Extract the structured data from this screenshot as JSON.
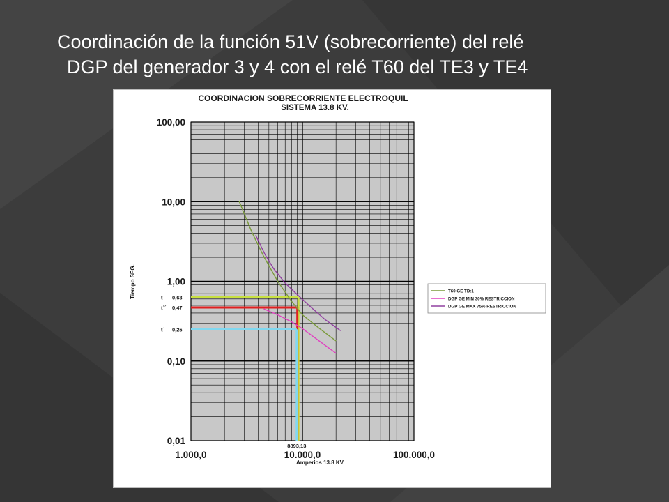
{
  "slide": {
    "title_line1": "Coordinación de la función 51V (sobrecorriente) del relé",
    "title_line2": "DGP del generador 3 y 4 con el relé T60 del TE3 y TE4"
  },
  "colors": {
    "background": "#3c3c3c",
    "plot_background": "#c8c8c8",
    "t60": "#7a9a3a",
    "dgp_min": "#e040c0",
    "dgp_max": "#9040a0",
    "marker_t": "#c8e040",
    "marker_t2": "#e02020",
    "marker_t1": "#80d8f0"
  },
  "chart_data": {
    "type": "line",
    "title": "COORDINACION SOBRECORRIENTE ELECTROQUIL",
    "subtitle": "SISTEMA 13.8 KV.",
    "xlabel": "Amperios 13.8 KV",
    "ylabel": "Tiempo SEG.",
    "x_scale": "log",
    "y_scale": "log",
    "xlim": [
      1000,
      100000
    ],
    "ylim": [
      0.01,
      100
    ],
    "x_ticks": [
      1000,
      10000,
      100000
    ],
    "x_tick_labels": [
      "1.000,0",
      "10.000,0",
      "100.000,0"
    ],
    "y_ticks": [
      100,
      10,
      1,
      0.1,
      0.01
    ],
    "y_tick_labels": [
      "100,00",
      "10,00",
      "1,00",
      "0,10",
      "0,01"
    ],
    "grid": true,
    "legend_position": "right",
    "series": [
      {
        "name": "T60 GE  TD:1",
        "color_key": "t60",
        "points": [
          [
            2700,
            10.2
          ],
          [
            3500,
            4.2
          ],
          [
            4500,
            2.05
          ],
          [
            6000,
            1.0
          ],
          [
            8000,
            0.56
          ],
          [
            10000,
            0.38
          ],
          [
            14000,
            0.26
          ],
          [
            20000,
            0.178
          ]
        ]
      },
      {
        "name": "DGP GE MIN 30% RESTRICCION",
        "color_key": "dgp_min",
        "points": [
          [
            4500,
            0.45
          ],
          [
            6000,
            0.38
          ],
          [
            8000,
            0.31
          ],
          [
            10000,
            0.255
          ],
          [
            14000,
            0.18
          ],
          [
            20000,
            0.125
          ]
        ]
      },
      {
        "name": "DGP GE MAX 75% RESTRICCION",
        "color_key": "dgp_max",
        "points": [
          [
            3800,
            3.8
          ],
          [
            4600,
            2.2
          ],
          [
            5500,
            1.45
          ],
          [
            7000,
            0.95
          ],
          [
            9000,
            0.68
          ],
          [
            12000,
            0.47
          ],
          [
            16000,
            0.33
          ],
          [
            22000,
            0.24
          ]
        ]
      }
    ],
    "markers": [
      {
        "id": "t",
        "label": "t",
        "value_label": "0,63",
        "y": 0.63,
        "x": 9200,
        "color_key": "marker_t"
      },
      {
        "id": "t2",
        "label": "t´´",
        "value_label": "0,47",
        "y": 0.47,
        "x": 9000,
        "color_key": "marker_t2"
      },
      {
        "id": "t1",
        "label": "t´",
        "value_label": "0,25",
        "y": 0.25,
        "x": 8893.13,
        "color_key": "marker_t1"
      }
    ],
    "x_annotation": {
      "label": "8893,13",
      "x": 8893.13
    }
  }
}
